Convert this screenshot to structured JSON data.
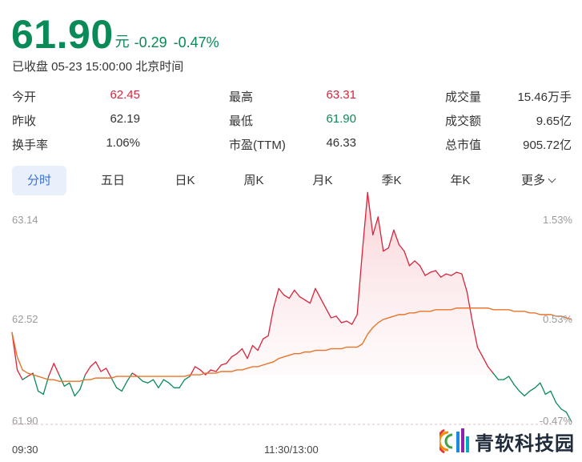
{
  "quote": {
    "price": "61.90",
    "unit": "元",
    "change": "-0.29",
    "change_pct": "-0.47%",
    "status": "已收盘 05-23 15:00:00 北京时间"
  },
  "stats": [
    {
      "label": "今开",
      "value": "62.45",
      "color": "#d8243b"
    },
    {
      "label": "最高",
      "value": "63.31",
      "color": "#d8243b"
    },
    {
      "label": "成交量",
      "value": "15.46万手",
      "color": "#333333"
    },
    {
      "label": "昨收",
      "value": "62.19",
      "color": "#333333"
    },
    {
      "label": "最低",
      "value": "61.90",
      "color": "#0a8a57"
    },
    {
      "label": "成交额",
      "value": "9.65亿",
      "color": "#333333"
    },
    {
      "label": "换手率",
      "value": "1.06%",
      "color": "#333333"
    },
    {
      "label": "市盈(TTM)",
      "value": "46.33",
      "color": "#333333"
    },
    {
      "label": "总市值",
      "value": "905.72亿",
      "color": "#333333"
    }
  ],
  "tabs": [
    "分时",
    "五日",
    "日K",
    "周K",
    "月K",
    "季K",
    "年K",
    "更多"
  ],
  "active_tab": "分时",
  "colors": {
    "up": "#d8243b",
    "down": "#0a8a57",
    "avg": "#e8742b",
    "active_tab": "#3a6fd8"
  },
  "chart_data": {
    "type": "line",
    "ylim": [
      61.9,
      63.14
    ],
    "y_ticks_left": [
      "63.14",
      "62.52",
      "61.90"
    ],
    "y_ticks_right": [
      "1.53%",
      "0.53%",
      "-0.47%"
    ],
    "x_ticks": [
      "09:30",
      "11:30/13:00"
    ],
    "prev_close": 62.19,
    "series": [
      {
        "values": [
          62.45,
          62.22,
          62.16,
          62.18,
          62.2,
          62.09,
          62.07,
          62.18,
          62.26,
          62.19,
          62.12,
          62.14,
          62.06,
          62.1,
          62.19,
          62.24,
          62.27,
          62.21,
          62.23,
          62.17,
          62.11,
          62.09,
          62.15,
          62.2,
          62.18,
          62.15,
          62.14,
          62.16,
          62.11,
          62.16,
          62.14,
          62.11,
          62.11,
          62.16,
          62.18,
          62.24,
          62.22,
          62.19,
          62.22,
          62.21,
          62.25,
          62.26,
          62.3,
          62.32,
          62.35,
          62.29,
          62.37,
          62.34,
          62.41,
          62.43,
          62.6,
          62.72,
          62.68,
          62.66,
          62.71,
          62.67,
          62.65,
          62.63,
          62.72,
          62.66,
          62.6,
          62.54,
          62.55,
          62.51,
          62.52,
          62.5,
          62.56,
          62.95,
          63.31,
          63.05,
          63.16,
          62.95,
          62.97,
          63.08,
          62.99,
          62.95,
          62.86,
          62.89,
          62.86,
          62.8,
          62.82,
          62.83,
          62.79,
          62.81,
          62.8,
          62.82,
          62.81,
          62.7,
          62.52,
          62.36,
          62.3,
          62.24,
          62.2,
          62.16,
          62.16,
          62.18,
          62.13,
          62.09,
          62.06,
          62.09,
          62.11,
          62.14,
          62.07,
          62.09,
          62.02,
          61.98,
          61.96,
          61.9
        ],
        "color": "#d8243b"
      },
      {
        "values": [
          62.45,
          62.3,
          62.22,
          62.2,
          62.19,
          62.18,
          62.17,
          62.16,
          62.16,
          62.15,
          62.15,
          62.15,
          62.15,
          62.15,
          62.16,
          62.16,
          62.17,
          62.17,
          62.17,
          62.17,
          62.18,
          62.18,
          62.18,
          62.18,
          62.18,
          62.18,
          62.18,
          62.18,
          62.18,
          62.18,
          62.18,
          62.18,
          62.18,
          62.18,
          62.19,
          62.19,
          62.19,
          62.2,
          62.2,
          62.2,
          62.21,
          62.21,
          62.21,
          62.22,
          62.22,
          62.23,
          62.24,
          62.24,
          62.25,
          62.26,
          62.27,
          62.29,
          62.3,
          62.31,
          62.32,
          62.32,
          62.33,
          62.33,
          62.34,
          62.34,
          62.34,
          62.35,
          62.35,
          62.35,
          62.36,
          62.36,
          62.36,
          62.38,
          62.44,
          62.48,
          62.51,
          62.53,
          62.54,
          62.55,
          62.56,
          62.56,
          62.57,
          62.57,
          62.58,
          62.58,
          62.58,
          62.59,
          62.59,
          62.59,
          62.59,
          62.6,
          62.6,
          62.6,
          62.6,
          62.6,
          62.6,
          62.6,
          62.59,
          62.59,
          62.59,
          62.59,
          62.58,
          62.58,
          62.58,
          62.57,
          62.57,
          62.56,
          62.56,
          62.56,
          62.55,
          62.55,
          62.54,
          62.53
        ],
        "color": "#e8742b"
      }
    ]
  },
  "brand": {
    "name": "青软科技园"
  }
}
